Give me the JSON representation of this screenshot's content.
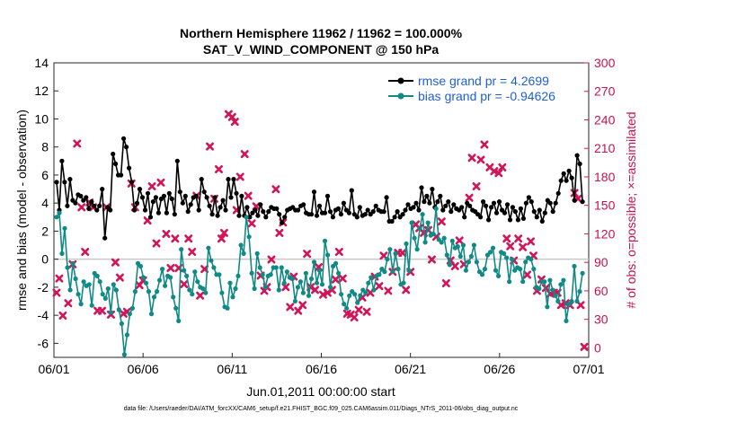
{
  "chart_data": {
    "type": "line",
    "title_line1": "Northern Hemisphere 11962 / 11962 = 100.000%",
    "title_line2": "SAT_V_WIND_COMPONENT @ 150 hPa",
    "ylabel_left": "rmse and bias (model - observation)",
    "ylabel_right": "# of obs: o=possible; ×=assimilated",
    "xlabel": "Jun.01,2011 00:00:00 start",
    "footer": "data file: /Users/raeder/DAI/ATM_forcXX/CAM6_setup/f.e21.FHIST_BGC.f09_025.CAM6assim.011/Diags_NTrS_2011-06/obs_diag_output.nc",
    "ylim_left": [
      -7,
      14
    ],
    "ylim_right": [
      -10,
      300
    ],
    "xlim_days": [
      0,
      30
    ],
    "yticks_left": [
      "-6",
      "-4",
      "-2",
      "0",
      "2",
      "4",
      "6",
      "8",
      "10",
      "12",
      "14"
    ],
    "yticks_right": [
      "0",
      "30",
      "60",
      "90",
      "120",
      "150",
      "180",
      "210",
      "240",
      "270",
      "300"
    ],
    "xticks": [
      {
        "day": 0,
        "label": "06/01"
      },
      {
        "day": 5,
        "label": "06/06"
      },
      {
        "day": 10,
        "label": "06/11"
      },
      {
        "day": 15,
        "label": "06/16"
      },
      {
        "day": 20,
        "label": "06/21"
      },
      {
        "day": 25,
        "label": "06/26"
      },
      {
        "day": 30,
        "label": "07/01"
      }
    ],
    "colors": {
      "rmse": "#000000",
      "bias": "#108a86",
      "obs": "#d21558",
      "legend_text": "#1f5fd6",
      "zero_line": "#c8c8c8"
    },
    "series": [
      {
        "name": "rmse grand pr = 4.2699",
        "axis": "left",
        "values": [
          5.5,
          3.5,
          7.0,
          5.5,
          3.8,
          5.7,
          4.2,
          4.0,
          4.6,
          4.5,
          4.2,
          4.4,
          3.6,
          4.1,
          3.8,
          3.5,
          3.8,
          5.0,
          1.5,
          3.7,
          3.5,
          7.5,
          6.8,
          6.0,
          6.0,
          8.6,
          8.0,
          6.5,
          5.5,
          3.5,
          4.0,
          5.0,
          4.4,
          3.5,
          4.7,
          3.0,
          4.1,
          4.4,
          3.3,
          4.3,
          4.5,
          3.3,
          4.7,
          4.3,
          3.2,
          7.0,
          4.8,
          4.0,
          4.5,
          3.4,
          3.9,
          4.4,
          4.5,
          3.5,
          5.7,
          4.8,
          4.4,
          3.8,
          3.2,
          4.4,
          3.1,
          3.7,
          4.2,
          3.5,
          5.7,
          4.4,
          5.7,
          4.7,
          3.1,
          4.5,
          3.1,
          3.7,
          3.0,
          3.3,
          3.5,
          3.1,
          3.9,
          3.4,
          3.0,
          3.4,
          3.7,
          3.6,
          3.6,
          3.2,
          2.6,
          3.0,
          3.5,
          3.6,
          3.7,
          3.5,
          3.5,
          3.8,
          3.9,
          3.3,
          3.2,
          3.2,
          4.8,
          3.1,
          3.8,
          3.3,
          3.3,
          4.5,
          3.4,
          3.0,
          3.5,
          3.6,
          3.2,
          4.0,
          3.5,
          3.3,
          4.9,
          3.2,
          3.0,
          3.7,
          3.1,
          3.2,
          3.5,
          3.2,
          3.4,
          3.8,
          3.5,
          3.4,
          3.4,
          4.4,
          2.7,
          2.7,
          3.0,
          3.4,
          3.0,
          3.2,
          3.5,
          3.9,
          3.6,
          3.7,
          4.0,
          3.5,
          5.1,
          4.1,
          4.5,
          4.0,
          5.0,
          3.7,
          4.1,
          4.5,
          3.5,
          3.8,
          4.1,
          3.4,
          3.9,
          3.6,
          3.5,
          3.7,
          3.0,
          4.0,
          3.8,
          3.5,
          3.4,
          3.2,
          3.0,
          4.1,
          3.8,
          2.8,
          3.7,
          4.0,
          3.3,
          4.1,
          3.5,
          3.3,
          3.9,
          2.8,
          3.7,
          3.4,
          2.8,
          3.6,
          2.9,
          4.0,
          4.4,
          4.1,
          3.4,
          3.0,
          3.5,
          2.7,
          3.3,
          4.2,
          4.0,
          3.4,
          4.0,
          4.7,
          5.6,
          6.1,
          5.6,
          6.3,
          5.8,
          4.2,
          7.4,
          6.8,
          4.1
        ]
      },
      {
        "name": "bias grand pr = -0.94626",
        "axis": "left",
        "values": [
          3.0,
          3.3,
          0.4,
          2.2,
          -0.6,
          -2.2,
          -0.3,
          -1.4,
          -2.5,
          -3.2,
          -1.6,
          -1.9,
          -1.8,
          -3.3,
          -1.0,
          -1.2,
          -1.6,
          -2.5,
          -2.8,
          -2.1,
          -3.8,
          -1.8,
          -2.2,
          -3.6,
          -4.6,
          -6.8,
          -5.4,
          -3.9,
          -3.5,
          -2.3,
          -0.3,
          -0.5,
          -1.3,
          -1.7,
          -2.3,
          -3.9,
          -2.7,
          -2.3,
          -1.5,
          -0.7,
          -1.9,
          -1.2,
          -1.3,
          -2.7,
          -3.5,
          -4.4,
          0.7,
          -0.8,
          -1.2,
          -2.2,
          -2.5,
          -0.9,
          -1.6,
          -2.0,
          -2.1,
          -2.4,
          0.8,
          -0.1,
          -0.6,
          -1.1,
          -1.1,
          -2.4,
          -3.4,
          -3.5,
          -1.7,
          -2.7,
          -2.1,
          -1.2,
          1.0,
          0.4,
          3.0,
          1.6,
          -1.0,
          -2.1,
          0.4,
          -0.6,
          -1.1,
          -2.0,
          -1.2,
          -1.1,
          -0.6,
          -0.6,
          -2.2,
          -0.6,
          -1.7,
          -0.9,
          -1.3,
          -1.4,
          -3.0,
          -2.0,
          -1.6,
          -2.4,
          -1.0,
          -2.6,
          -1.4,
          -0.2,
          -1.7,
          -0.8,
          -1.8,
          1.3,
          0.3,
          -2.0,
          -0.5,
          -0.3,
          -1.0,
          -2.5,
          -3.2,
          -3.5,
          -2.6,
          -2.3,
          -2.5,
          -3.1,
          -2.6,
          -2.2,
          -2.4,
          -1.7,
          -1.3,
          -2.2,
          -1.2,
          -1.1,
          -0.7,
          -0.9,
          0.0,
          0.7,
          -0.9,
          0.4,
          -0.7,
          -1.8,
          -1.7,
          1.1,
          -0.8,
          2.6,
          1.5,
          0.7,
          2.2,
          3.2,
          1.2,
          2.6,
          1.7,
          1.8,
          3.6,
          1.4,
          1.2,
          1.5,
          0.3,
          -0.4,
          1.3,
          0.8,
          0.9,
          0.2,
          1.0,
          -0.8,
          -0.2,
          0.2,
          1.0,
          -0.2,
          -0.9,
          -1.1,
          -0.7,
          0.3,
          0.5,
          0.8,
          -0.8,
          -1.2,
          0.5,
          0.4,
          0.1,
          -1.6,
          0.0,
          -0.8,
          -0.6,
          -0.7,
          -1.6,
          -0.2,
          0.1,
          0.0,
          -0.7,
          -2.0,
          -2.1,
          -1.6,
          -1.6,
          -3.4,
          -1.5,
          -2.2,
          -2.6,
          -3.0,
          -1.8,
          -1.5,
          -4.4,
          -3.2,
          -3.0,
          -0.5,
          -3.0,
          -2.3,
          -1.0
        ]
      },
      {
        "name": "assimilated obs",
        "axis": "right",
        "points": [
          [
            0.15,
            58
          ],
          [
            0.3,
            73
          ],
          [
            0.5,
            34
          ],
          [
            0.8,
            47
          ],
          [
            1.05,
            88
          ],
          [
            1.3,
            215
          ],
          [
            1.55,
            148
          ],
          [
            1.75,
            101
          ],
          [
            2.0,
            153
          ],
          [
            2.2,
            148
          ],
          [
            2.45,
            39
          ],
          [
            2.7,
            39
          ],
          [
            2.95,
            148
          ],
          [
            3.2,
            35
          ],
          [
            3.45,
            90
          ],
          [
            3.7,
            74
          ],
          [
            3.9,
            36
          ],
          [
            4.1,
            38
          ],
          [
            4.35,
            173
          ],
          [
            4.55,
            148
          ],
          [
            4.8,
            66
          ],
          [
            5.0,
            71
          ],
          [
            5.25,
            134
          ],
          [
            5.5,
            170
          ],
          [
            5.75,
            110
          ],
          [
            6.0,
            174
          ],
          [
            6.3,
            120
          ],
          [
            6.55,
            84
          ],
          [
            6.8,
            115
          ],
          [
            7.0,
            84
          ],
          [
            7.3,
            67
          ],
          [
            7.55,
            115
          ],
          [
            7.75,
            101
          ],
          [
            8.0,
            160
          ],
          [
            8.2,
            55
          ],
          [
            8.45,
            83
          ],
          [
            8.75,
            212
          ],
          [
            9.0,
            157
          ],
          [
            9.25,
            188
          ],
          [
            9.4,
            115
          ],
          [
            9.55,
            121
          ],
          [
            9.8,
            246
          ],
          [
            10.0,
            243
          ],
          [
            10.15,
            238
          ],
          [
            10.25,
            145
          ],
          [
            10.45,
            180
          ],
          [
            10.7,
            204
          ],
          [
            10.9,
            160
          ],
          [
            11.1,
            131
          ],
          [
            11.35,
            149
          ],
          [
            11.6,
            76
          ],
          [
            11.8,
            60
          ],
          [
            11.95,
            64
          ],
          [
            12.2,
            93
          ],
          [
            12.45,
            167
          ],
          [
            12.65,
            121
          ],
          [
            12.85,
            132
          ],
          [
            13.0,
            64
          ],
          [
            13.25,
            43
          ],
          [
            13.45,
            75
          ],
          [
            13.7,
            39
          ],
          [
            13.95,
            45
          ],
          [
            14.2,
            99
          ],
          [
            14.4,
            64
          ],
          [
            14.65,
            61
          ],
          [
            14.85,
            85
          ],
          [
            15.1,
            56
          ],
          [
            15.35,
            58
          ],
          [
            15.6,
            61
          ],
          [
            15.8,
            72
          ],
          [
            16.0,
            101
          ],
          [
            16.2,
            73
          ],
          [
            16.45,
            36
          ],
          [
            16.65,
            35
          ],
          [
            16.85,
            32
          ],
          [
            17.1,
            40
          ],
          [
            17.3,
            53
          ],
          [
            17.55,
            38
          ],
          [
            17.75,
            58
          ],
          [
            18.0,
            75
          ],
          [
            18.25,
            65
          ],
          [
            18.5,
            97
          ],
          [
            18.75,
            60
          ],
          [
            19.0,
            80
          ],
          [
            19.3,
            100
          ],
          [
            19.55,
            100
          ],
          [
            19.75,
            61
          ],
          [
            20.0,
            80
          ],
          [
            20.3,
            130
          ],
          [
            20.5,
            126
          ],
          [
            20.75,
            121
          ],
          [
            21.0,
            124
          ],
          [
            21.2,
            93
          ],
          [
            21.45,
            117
          ],
          [
            21.75,
            133
          ],
          [
            22.0,
            68
          ],
          [
            22.25,
            92
          ],
          [
            22.5,
            86
          ],
          [
            22.75,
            113
          ],
          [
            23.0,
            88
          ],
          [
            23.3,
            158
          ],
          [
            23.45,
            200
          ],
          [
            23.7,
            170
          ],
          [
            23.95,
            198
          ],
          [
            24.15,
            214
          ],
          [
            24.45,
            190
          ],
          [
            24.7,
            186
          ],
          [
            24.95,
            184
          ],
          [
            25.15,
            190
          ],
          [
            25.4,
            115
          ],
          [
            25.6,
            107
          ],
          [
            25.8,
            92
          ],
          [
            26.05,
            115
          ],
          [
            26.3,
            106
          ],
          [
            26.55,
            77
          ],
          [
            26.75,
            112
          ],
          [
            26.9,
            97
          ],
          [
            27.1,
            60
          ],
          [
            27.35,
            72
          ],
          [
            27.6,
            63
          ],
          [
            27.85,
            57
          ],
          [
            28.05,
            58
          ],
          [
            28.25,
            58
          ],
          [
            28.45,
            45
          ],
          [
            28.7,
            47
          ],
          [
            28.95,
            45
          ],
          [
            29.2,
            163
          ],
          [
            29.4,
            157
          ],
          [
            29.55,
            45
          ],
          [
            29.75,
            1
          ]
        ]
      }
    ]
  }
}
